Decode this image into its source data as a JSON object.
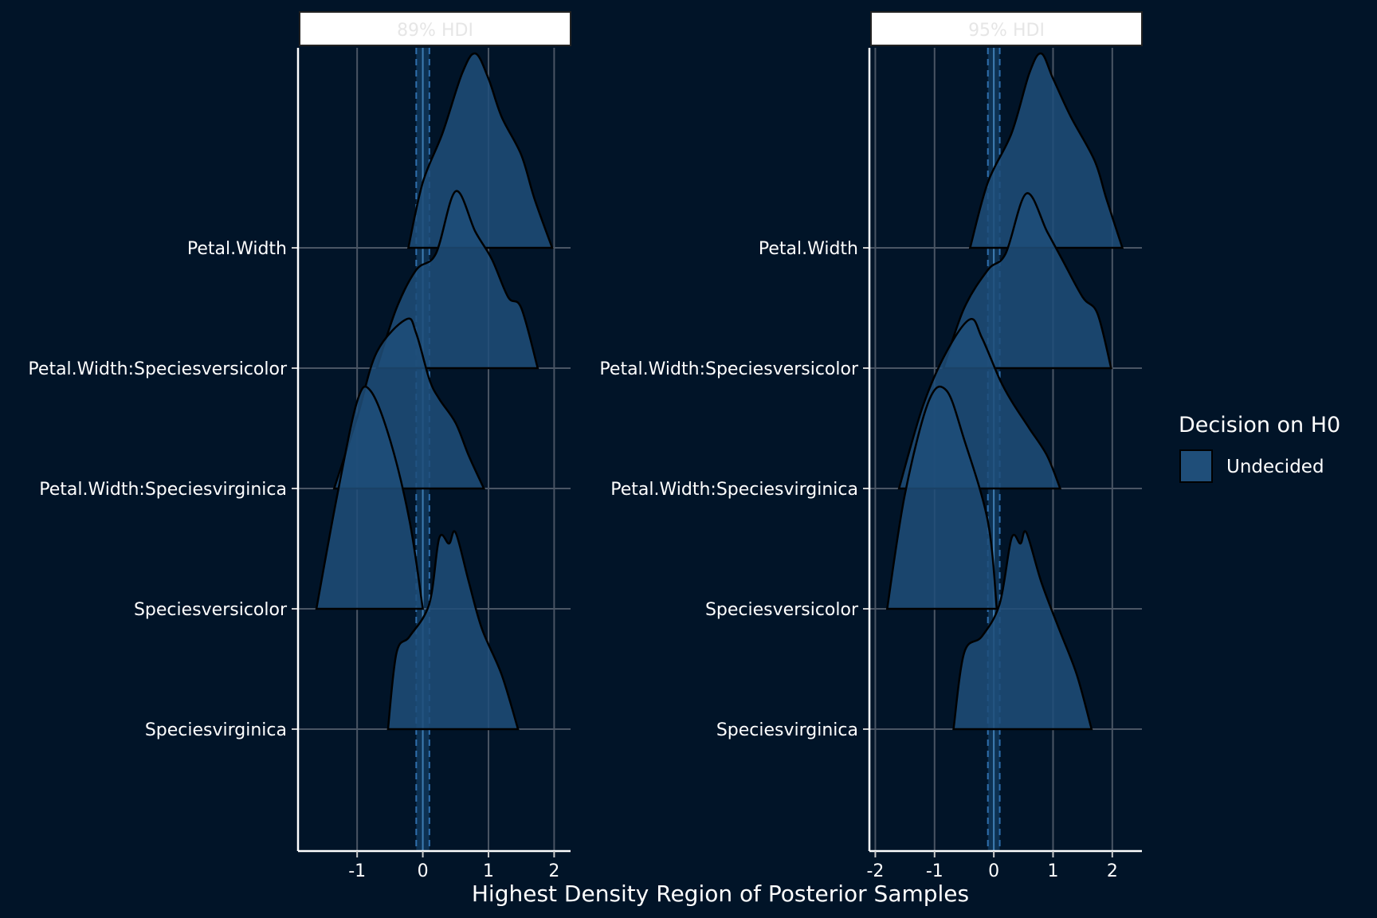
{
  "chart_data": {
    "type": "ridgeline",
    "xlabel": "Highest Density Region of Posterior Samples",
    "legend": {
      "title": "Decision on H0",
      "placement": "right",
      "entries": [
        {
          "label": "Undecided",
          "color": "#1f4e79"
        }
      ]
    },
    "categories": [
      "Petal.Width",
      "Petal.Width:Speciesversicolor",
      "Petal.Width:Speciesvirginica",
      "Speciesversicolor",
      "Speciesvirginica"
    ],
    "rope": [
      -0.1,
      0.1
    ],
    "panels": [
      {
        "title": "89% HDI",
        "xlim": [
          -1.9,
          2.25
        ],
        "xticks": [
          -1,
          0,
          1,
          2
        ],
        "series": [
          {
            "name": "Petal.Width",
            "decision": "Undecided",
            "x": [
              -0.22,
              0.0,
              0.3,
              0.6,
              0.8,
              1.0,
              1.2,
              1.5,
              1.7,
              1.97
            ],
            "density": [
              0.0,
              0.6,
              1.05,
              1.6,
              1.78,
              1.55,
              1.2,
              0.85,
              0.45,
              0.0
            ]
          },
          {
            "name": "Petal.Width:Speciesversicolor",
            "decision": "Undecided",
            "x": [
              -0.7,
              -0.4,
              -0.1,
              0.2,
              0.5,
              0.8,
              1.05,
              1.3,
              1.5,
              1.75
            ],
            "density": [
              0.0,
              0.55,
              0.9,
              1.05,
              1.62,
              1.25,
              1.0,
              0.65,
              0.55,
              0.0
            ]
          },
          {
            "name": "Petal.Width:Speciesvirginica",
            "decision": "Undecided",
            "x": [
              -1.35,
              -1.0,
              -0.7,
              -0.25,
              -0.1,
              0.1,
              0.25,
              0.5,
              0.7,
              0.93
            ],
            "density": [
              0.0,
              0.65,
              1.25,
              1.55,
              1.42,
              1.0,
              0.82,
              0.6,
              0.3,
              0.0
            ]
          },
          {
            "name": "Speciesversicolor",
            "decision": "Undecided",
            "x": [
              -1.62,
              -1.3,
              -1.0,
              -0.8,
              -0.5,
              -0.2,
              0.0
            ],
            "density": [
              0.0,
              1.05,
              1.9,
              2.0,
              1.55,
              0.8,
              0.0
            ]
          },
          {
            "name": "Speciesvirginica",
            "decision": "Undecided",
            "x": [
              -0.53,
              -0.4,
              -0.2,
              0.1,
              0.25,
              0.4,
              0.5,
              0.7,
              0.9,
              1.2,
              1.45
            ],
            "density": [
              0.0,
              0.7,
              0.85,
              1.15,
              1.75,
              1.7,
              1.8,
              1.35,
              0.92,
              0.5,
              0.0
            ]
          }
        ]
      },
      {
        "title": "95% HDI",
        "xlim": [
          -2.1,
          2.5
        ],
        "xticks": [
          -2,
          -1,
          0,
          1,
          2
        ],
        "series": [
          {
            "name": "Petal.Width",
            "decision": "Undecided",
            "x": [
              -0.4,
              -0.1,
              0.3,
              0.6,
              0.8,
              1.0,
              1.3,
              1.7,
              1.9,
              2.17
            ],
            "density": [
              0.0,
              0.6,
              1.05,
              1.6,
              1.78,
              1.55,
              1.2,
              0.8,
              0.45,
              0.0
            ]
          },
          {
            "name": "Petal.Width:Speciesversicolor",
            "decision": "Undecided",
            "x": [
              -0.85,
              -0.5,
              -0.1,
              0.2,
              0.55,
              0.9,
              1.15,
              1.5,
              1.75,
              1.98
            ],
            "density": [
              0.0,
              0.55,
              0.9,
              1.05,
              1.6,
              1.25,
              1.0,
              0.65,
              0.5,
              0.0
            ]
          },
          {
            "name": "Petal.Width:Speciesvirginica",
            "decision": "Undecided",
            "x": [
              -1.6,
              -1.2,
              -0.8,
              -0.4,
              -0.2,
              0.1,
              0.3,
              0.6,
              0.9,
              1.12
            ],
            "density": [
              0.0,
              0.75,
              1.25,
              1.55,
              1.38,
              1.0,
              0.8,
              0.55,
              0.3,
              0.0
            ]
          },
          {
            "name": "Speciesversicolor",
            "decision": "Undecided",
            "x": [
              -1.8,
              -1.5,
              -1.1,
              -0.8,
              -0.5,
              -0.1,
              0.05
            ],
            "density": [
              0.0,
              1.05,
              1.9,
              2.0,
              1.55,
              0.8,
              0.0
            ]
          },
          {
            "name": "Speciesvirginica",
            "decision": "Undecided",
            "x": [
              -0.68,
              -0.5,
              -0.2,
              0.1,
              0.3,
              0.45,
              0.55,
              0.8,
              1.1,
              1.4,
              1.65
            ],
            "density": [
              0.0,
              0.7,
              0.85,
              1.15,
              1.75,
              1.7,
              1.8,
              1.35,
              0.92,
              0.5,
              0.0
            ]
          }
        ]
      }
    ]
  }
}
